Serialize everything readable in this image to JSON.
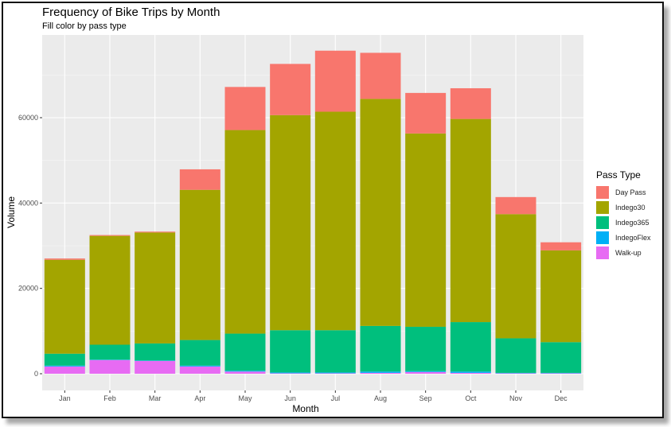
{
  "chart_data": {
    "type": "bar",
    "stacked": true,
    "title": "Frequency of Bike Trips by Month",
    "subtitle": "Fill color by pass type",
    "xlabel": "Month",
    "ylabel": "Volume",
    "ylim": [
      0,
      80000
    ],
    "yticks": [
      0,
      20000,
      40000,
      60000
    ],
    "ytick_labels": [
      "0",
      "20000",
      "40000",
      "60000"
    ],
    "grid": true,
    "legend_position": "right",
    "legend_title": "Pass Type",
    "categories": [
      "Jan",
      "Feb",
      "Mar",
      "Apr",
      "May",
      "Jun",
      "Jul",
      "Aug",
      "Sep",
      "Oct",
      "Nov",
      "Dec"
    ],
    "series": [
      {
        "name": "Walk-up",
        "color": "#E76BF3",
        "values": [
          1700,
          3200,
          3000,
          1700,
          500,
          100,
          100,
          200,
          400,
          200,
          100,
          100
        ]
      },
      {
        "name": "IndegoFlex",
        "color": "#00B0F6",
        "values": [
          200,
          100,
          100,
          200,
          200,
          200,
          200,
          300,
          200,
          300,
          100,
          100
        ]
      },
      {
        "name": "Indego365",
        "color": "#00BF7D",
        "values": [
          2800,
          3500,
          4000,
          6000,
          8700,
          9900,
          9900,
          10700,
          10400,
          11600,
          8100,
          7200
        ]
      },
      {
        "name": "Indego30",
        "color": "#A3A500",
        "values": [
          22000,
          25500,
          26000,
          35200,
          47700,
          50400,
          51200,
          53200,
          45300,
          47600,
          29100,
          21500
        ]
      },
      {
        "name": "Day Pass",
        "color": "#F8766D",
        "values": [
          300,
          200,
          200,
          4800,
          10100,
          12000,
          14300,
          10800,
          9500,
          7200,
          4000,
          1900
        ]
      }
    ],
    "legend_order": [
      "Day Pass",
      "Indego30",
      "Indego365",
      "IndegoFlex",
      "Walk-up"
    ]
  }
}
